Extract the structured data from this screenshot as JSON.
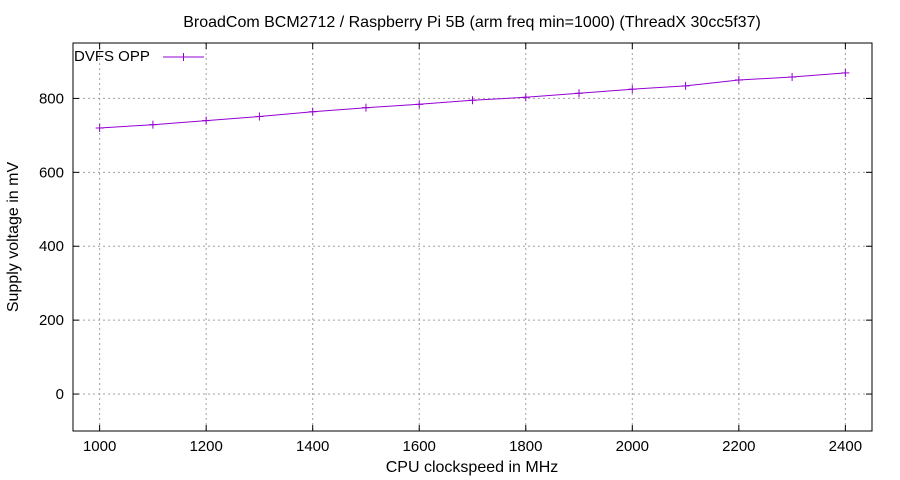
{
  "chart_data": {
    "type": "line",
    "title": "BroadCom BCM2712 / Raspberry Pi 5B (arm freq min=1000) (ThreadX 30cc5f37)",
    "xlabel": "CPU clockspeed in MHz",
    "ylabel": "Supply voltage in mV",
    "xlim": [
      950,
      2450
    ],
    "ylim": [
      -100,
      950
    ],
    "xticks": [
      1000,
      1200,
      1400,
      1600,
      1800,
      2000,
      2200,
      2400
    ],
    "yticks": [
      0,
      200,
      400,
      600,
      800
    ],
    "grid": true,
    "legend_position": "top-left",
    "series": [
      {
        "name": "DVFS OPP",
        "color": "#9400d3",
        "marker": "plus",
        "x": [
          1000,
          1100,
          1200,
          1300,
          1400,
          1500,
          1600,
          1700,
          1800,
          1900,
          2000,
          2100,
          2200,
          2300,
          2400
        ],
        "y": [
          720,
          729,
          740,
          751,
          764,
          775,
          784,
          795,
          803,
          814,
          825,
          834,
          850,
          858,
          869
        ]
      }
    ]
  }
}
